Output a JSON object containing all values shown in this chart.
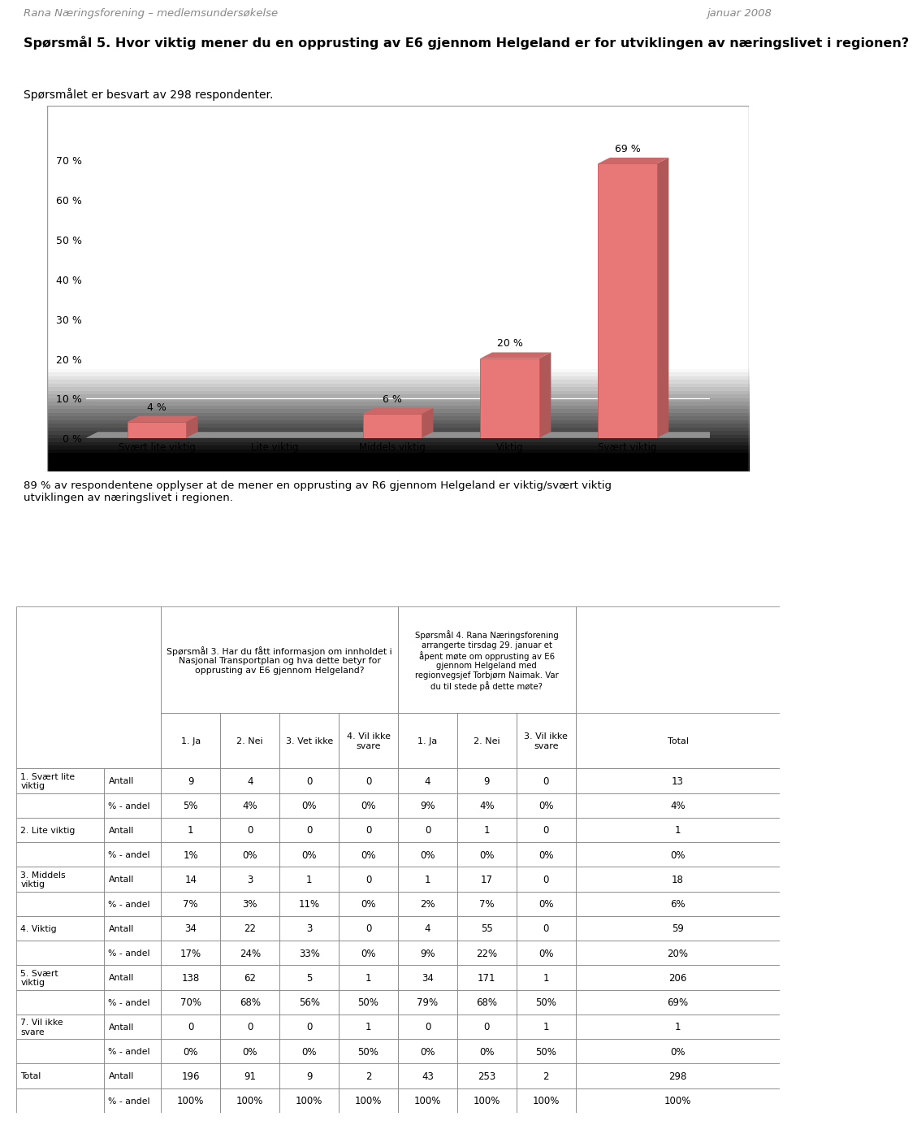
{
  "header_left": "Rana Næringsforening – medlemsundersøkelse",
  "header_right": "januar 2008",
  "question_title": "Spørsmål 5. Hvor viktig mener du en opprusting av E6 gjennom Helgeland er for utviklingen av næringslivet i regionen?",
  "respondent_text": "Spørsmålet er besvart av 298 respondenter.",
  "bar_categories": [
    "Svært lite viktig",
    "Lite viktig",
    "Middels viktig",
    "Viktig",
    "Svært viktig"
  ],
  "bar_values": [
    4,
    0,
    6,
    20,
    69
  ],
  "bar_color": "#e87878",
  "bar_right_color": "#b05858",
  "bar_top_color": "#cc6868",
  "bar_shadow_color": "#909090",
  "chart_bg_gradient_top": "#d8d8d8",
  "chart_bg_gradient_bot": "#f5f5f5",
  "chart_border_color": "#aaaaaa",
  "yticks": [
    0,
    10,
    20,
    30,
    40,
    50,
    60,
    70
  ],
  "ytick_labels": [
    "0 %",
    "10 %",
    "20 %",
    "30 %",
    "40 %",
    "50 %",
    "60 %",
    "70 %"
  ],
  "bar_labels": [
    "4 %",
    "",
    "6 %",
    "20 %",
    "69 %"
  ],
  "summary_text": "89 % av respondentene opplyser at de mener en opprusting av R6 gjennom Helgeland er viktig/svært viktig\nutviklingen av næringslivet i regionen.",
  "table_header_q3": "Spørsmål 3. Har du fått informasjon om innholdet i\nNasjonal Transportplan og hva dette betyr for\nopprusting av E6 gjennom Helgeland?",
  "table_header_q4": "Spørsmål 4. Rana Næringsforening\narrangerte tirsdag 29. januar et\nåpent møte om opprusting av E6\ngjennom Helgeland med\nregionvegsjef Torbjørn Naimak. Var\ndu til stede på dette møte?",
  "col_headers": [
    "1. Ja",
    "2. Nei",
    "3. Vet ikke",
    "4. Vil ikke\nsvare",
    "1. Ja",
    "2. Nei",
    "3. Vil ikke\nsvare",
    "Total"
  ],
  "row_labels": [
    [
      "1. Svært lite\nviktig",
      "Antall"
    ],
    [
      "",
      "% - andel"
    ],
    [
      "2. Lite viktig",
      "Antall"
    ],
    [
      "",
      "% - andel"
    ],
    [
      "3. Middels\nviktig",
      "Antall"
    ],
    [
      "",
      "% - andel"
    ],
    [
      "4. Viktig",
      "Antall"
    ],
    [
      "",
      "% - andel"
    ],
    [
      "5. Svært\nviktig",
      "Antall"
    ],
    [
      "",
      "% - andel"
    ],
    [
      "7. Vil ikke\nsvare",
      "Antall"
    ],
    [
      "",
      "% - andel"
    ],
    [
      "Total",
      "Antall"
    ],
    [
      "",
      "% - andel"
    ]
  ],
  "table_data": [
    [
      "9",
      "4",
      "0",
      "0",
      "4",
      "9",
      "0",
      "13"
    ],
    [
      "5%",
      "4%",
      "0%",
      "0%",
      "9%",
      "4%",
      "0%",
      "4%"
    ],
    [
      "1",
      "0",
      "0",
      "0",
      "0",
      "1",
      "0",
      "1"
    ],
    [
      "1%",
      "0%",
      "0%",
      "0%",
      "0%",
      "0%",
      "0%",
      "0%"
    ],
    [
      "14",
      "3",
      "1",
      "0",
      "1",
      "17",
      "0",
      "18"
    ],
    [
      "7%",
      "3%",
      "11%",
      "0%",
      "2%",
      "7%",
      "0%",
      "6%"
    ],
    [
      "34",
      "22",
      "3",
      "0",
      "4",
      "55",
      "0",
      "59"
    ],
    [
      "17%",
      "24%",
      "33%",
      "0%",
      "9%",
      "22%",
      "0%",
      "20%"
    ],
    [
      "138",
      "62",
      "5",
      "1",
      "34",
      "171",
      "1",
      "206"
    ],
    [
      "70%",
      "68%",
      "56%",
      "50%",
      "79%",
      "68%",
      "50%",
      "69%"
    ],
    [
      "0",
      "0",
      "0",
      "1",
      "0",
      "0",
      "1",
      "1"
    ],
    [
      "0%",
      "0%",
      "0%",
      "50%",
      "0%",
      "0%",
      "50%",
      "0%"
    ],
    [
      "196",
      "91",
      "9",
      "2",
      "43",
      "253",
      "2",
      "298"
    ],
    [
      "100%",
      "100%",
      "100%",
      "100%",
      "100%",
      "100%",
      "100%",
      "100%"
    ]
  ]
}
